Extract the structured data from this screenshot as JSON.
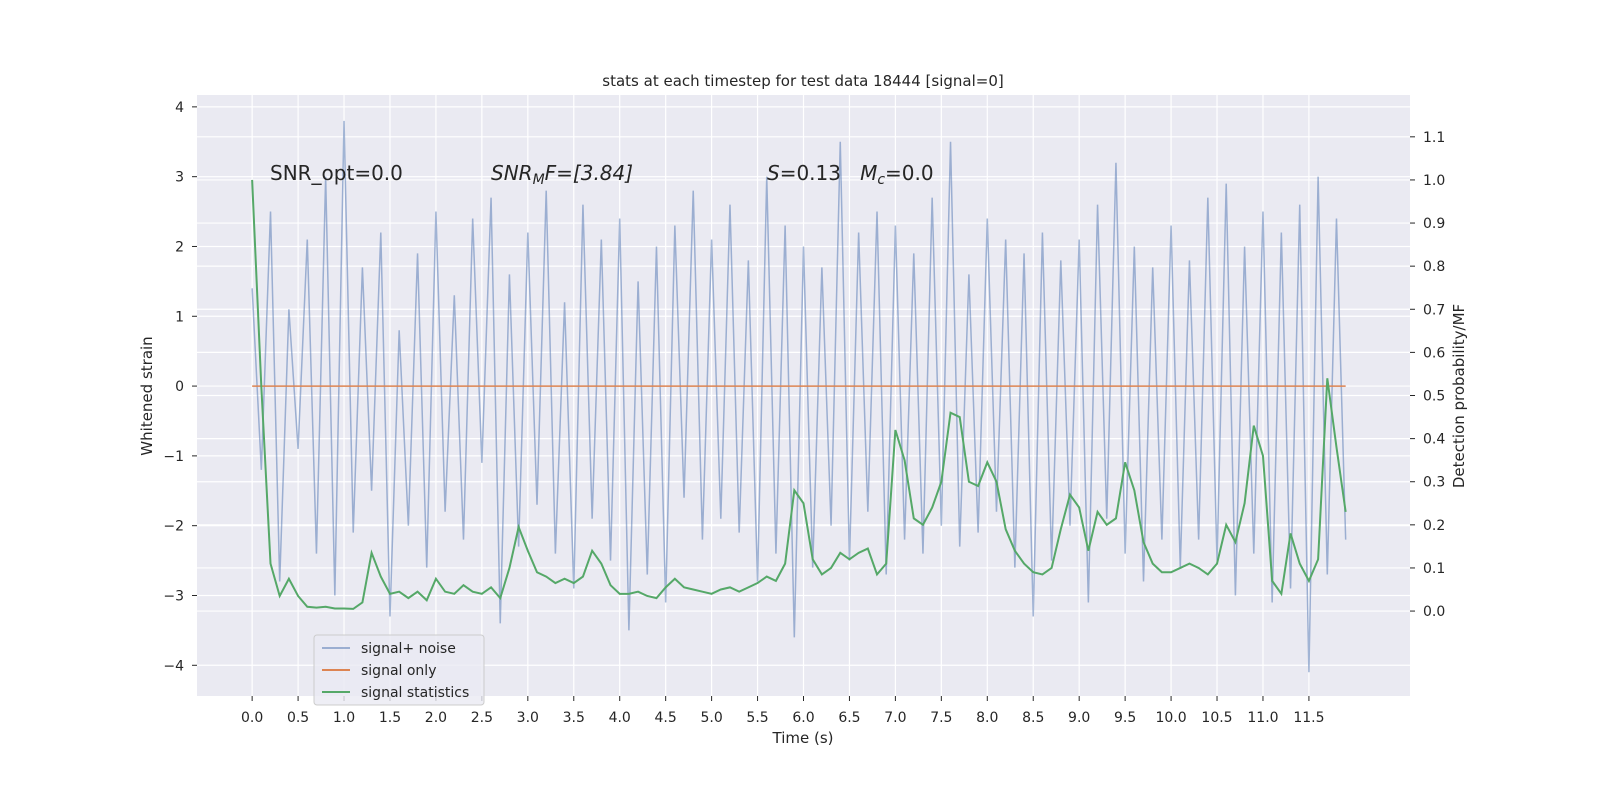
{
  "chart_data": {
    "type": "line",
    "title": "stats at each timestep for test data 18444 [signal=0]",
    "xlabel": "Time (s)",
    "ylabel": "Whitened strain",
    "y2label": "Detection probability/MF",
    "annotations": [
      [
        {
          "text": "SNR_opt=0.0",
          "style": "normal"
        }
      ],
      [
        {
          "text": "SNR",
          "style": "italic"
        },
        {
          "text": "M",
          "style": "sub"
        },
        {
          "text": "F=[3.84]",
          "style": "italic"
        }
      ],
      [
        {
          "text": "S",
          "style": "italic"
        },
        {
          "text": "=0.13   ",
          "style": "normal"
        },
        {
          "text": "M",
          "style": "italic"
        },
        {
          "text": "c",
          "style": "sub"
        },
        {
          "text": "=0.0",
          "style": "normal"
        }
      ]
    ],
    "xlim": [
      -0.6,
      12.6
    ],
    "ylim": [
      -4.44,
      4.17
    ],
    "y2lim": [
      -0.197,
      1.197
    ],
    "xticks": [
      {
        "value": 0,
        "label": "0.0"
      },
      {
        "value": 0.5,
        "label": "0.5"
      },
      {
        "value": 1,
        "label": "1.0"
      },
      {
        "value": 1.5,
        "label": "1.5"
      },
      {
        "value": 2,
        "label": "2.0"
      },
      {
        "value": 2.5,
        "label": "2.5"
      },
      {
        "value": 3,
        "label": "3.0"
      },
      {
        "value": 3.5,
        "label": "3.5"
      },
      {
        "value": 4,
        "label": "4.0"
      },
      {
        "value": 4.5,
        "label": "4.5"
      },
      {
        "value": 5,
        "label": "5.0"
      },
      {
        "value": 5.5,
        "label": "5.5"
      },
      {
        "value": 6,
        "label": "6.0"
      },
      {
        "value": 6.5,
        "label": "6.5"
      },
      {
        "value": 7,
        "label": "7.0"
      },
      {
        "value": 7.5,
        "label": "7.5"
      },
      {
        "value": 8,
        "label": "8.0"
      },
      {
        "value": 8.5,
        "label": "8.5"
      },
      {
        "value": 9,
        "label": "9.0"
      },
      {
        "value": 9.5,
        "label": "9.5"
      },
      {
        "value": 10,
        "label": "10.0"
      },
      {
        "value": 10.5,
        "label": "10.5"
      },
      {
        "value": 11,
        "label": "11.0"
      },
      {
        "value": 11.5,
        "label": "11.5"
      }
    ],
    "yticks": [
      {
        "value": -4,
        "label": "−4"
      },
      {
        "value": -3,
        "label": "−3"
      },
      {
        "value": -2,
        "label": "−2"
      },
      {
        "value": -1,
        "label": "−1"
      },
      0,
      1,
      2,
      3,
      4
    ],
    "y2ticks": [
      {
        "value": 0,
        "label": "0.0"
      },
      {
        "value": 0.1,
        "label": "0.1"
      },
      {
        "value": 0.2,
        "label": "0.2"
      },
      {
        "value": 0.3,
        "label": "0.3"
      },
      {
        "value": 0.4,
        "label": "0.4"
      },
      {
        "value": 0.5,
        "label": "0.5"
      },
      {
        "value": 0.6,
        "label": "0.6"
      },
      {
        "value": 0.7,
        "label": "0.7"
      },
      {
        "value": 0.8,
        "label": "0.8"
      },
      {
        "value": 0.9,
        "label": "0.9"
      },
      {
        "value": 1.0,
        "label": "1.0"
      },
      {
        "value": 1.1,
        "label": "1.1"
      }
    ],
    "grid": true,
    "legend": "lower left",
    "x": [
      0,
      0.1,
      0.2,
      0.3,
      0.4,
      0.5,
      0.6,
      0.7,
      0.8,
      0.9,
      1,
      1.1,
      1.2,
      1.3,
      1.4,
      1.5,
      1.6,
      1.7,
      1.8,
      1.9,
      2,
      2.1,
      2.2,
      2.3,
      2.4,
      2.5,
      2.6,
      2.7,
      2.8,
      2.9,
      3,
      3.1,
      3.2,
      3.3,
      3.4,
      3.5,
      3.6,
      3.7,
      3.8,
      3.9,
      4,
      4.1,
      4.2,
      4.3,
      4.4,
      4.5,
      4.6,
      4.7,
      4.8,
      4.9,
      5,
      5.1,
      5.2,
      5.3,
      5.4,
      5.5,
      5.6,
      5.7,
      5.8,
      5.9,
      6,
      6.1,
      6.2,
      6.3,
      6.4,
      6.5,
      6.6,
      6.7,
      6.8,
      6.9,
      7,
      7.1,
      7.2,
      7.3,
      7.4,
      7.5,
      7.6,
      7.7,
      7.8,
      7.9,
      8,
      8.1,
      8.2,
      8.3,
      8.4,
      8.5,
      8.6,
      8.7,
      8.8,
      8.9,
      9,
      9.1,
      9.2,
      9.3,
      9.4,
      9.5,
      9.6,
      9.7,
      9.8,
      9.9,
      10,
      10.1,
      10.2,
      10.3,
      10.4,
      10.5,
      10.6,
      10.7,
      10.8,
      10.9,
      11,
      11.1,
      11.2,
      11.3,
      11.4,
      11.5,
      11.6,
      11.7,
      11.8,
      11.9
    ],
    "series": [
      {
        "name": "signal+ noise",
        "color": "#4c72b0",
        "opacity": 0.5,
        "axis": "y",
        "values": [
          1.4,
          -1.2,
          2.5,
          -2.8,
          1.1,
          -0.9,
          2.1,
          -2.4,
          3.0,
          -3.0,
          3.8,
          -2.1,
          1.7,
          -1.5,
          2.2,
          -3.3,
          0.8,
          -2.0,
          1.9,
          -2.6,
          2.5,
          -1.8,
          1.3,
          -2.2,
          2.4,
          -1.1,
          2.7,
          -3.4,
          1.6,
          -2.3,
          2.2,
          -1.7,
          2.8,
          -2.4,
          1.2,
          -2.9,
          2.6,
          -1.9,
          2.1,
          -2.5,
          2.4,
          -3.5,
          1.5,
          -2.7,
          2.0,
          -3.1,
          2.3,
          -1.6,
          2.8,
          -2.2,
          2.1,
          -1.9,
          2.6,
          -2.1,
          1.8,
          -2.8,
          3.0,
          -2.4,
          2.3,
          -3.6,
          2.0,
          -2.6,
          1.7,
          -2.0,
          3.5,
          -2.5,
          2.2,
          -1.8,
          2.5,
          -2.7,
          2.3,
          -2.2,
          1.9,
          -2.4,
          2.7,
          -2.0,
          3.5,
          -2.3,
          1.6,
          -2.1,
          2.4,
          -1.8,
          2.1,
          -2.6,
          1.9,
          -3.3,
          2.2,
          -2.5,
          1.8,
          -2.0,
          2.1,
          -3.1,
          2.6,
          -1.9,
          3.2,
          -2.4,
          2.0,
          -2.8,
          1.7,
          -2.2,
          2.3,
          -2.6,
          1.8,
          -2.2,
          2.7,
          -2.5,
          2.9,
          -3.0,
          2.0,
          -2.4,
          2.5,
          -3.1,
          2.2,
          -2.9,
          2.6,
          -4.1,
          3.0,
          -2.7,
          2.4,
          -2.2
        ]
      },
      {
        "name": "signal only",
        "color": "#dd8452",
        "opacity": 1,
        "axis": "y",
        "values": [
          0,
          0,
          0,
          0,
          0,
          0,
          0,
          0,
          0,
          0,
          0,
          0,
          0,
          0,
          0,
          0,
          0,
          0,
          0,
          0,
          0,
          0,
          0,
          0,
          0,
          0,
          0,
          0,
          0,
          0,
          0,
          0,
          0,
          0,
          0,
          0,
          0,
          0,
          0,
          0,
          0,
          0,
          0,
          0,
          0,
          0,
          0,
          0,
          0,
          0,
          0,
          0,
          0,
          0,
          0,
          0,
          0,
          0,
          0,
          0,
          0,
          0,
          0,
          0,
          0,
          0,
          0,
          0,
          0,
          0,
          0,
          0,
          0,
          0,
          0,
          0,
          0,
          0,
          0,
          0,
          0,
          0,
          0,
          0,
          0,
          0,
          0,
          0,
          0,
          0,
          0,
          0,
          0,
          0,
          0,
          0,
          0,
          0,
          0,
          0,
          0,
          0,
          0,
          0,
          0,
          0,
          0,
          0,
          0,
          0,
          0,
          0,
          0,
          0,
          0,
          0,
          0,
          0,
          0,
          0
        ]
      },
      {
        "name": "signal statistics",
        "color": "#55a868",
        "opacity": 1,
        "axis": "y2",
        "values": [
          1.0,
          0.52,
          0.11,
          0.035,
          0.075,
          0.035,
          0.01,
          0.008,
          0.01,
          0.006,
          0.006,
          0.005,
          0.02,
          0.135,
          0.08,
          0.04,
          0.045,
          0.03,
          0.045,
          0.025,
          0.075,
          0.045,
          0.04,
          0.06,
          0.045,
          0.04,
          0.055,
          0.03,
          0.1,
          0.195,
          0.14,
          0.09,
          0.08,
          0.065,
          0.075,
          0.065,
          0.08,
          0.14,
          0.11,
          0.06,
          0.04,
          0.04,
          0.045,
          0.035,
          0.03,
          0.055,
          0.075,
          0.055,
          0.05,
          0.045,
          0.04,
          0.05,
          0.055,
          0.045,
          0.055,
          0.065,
          0.08,
          0.07,
          0.11,
          0.28,
          0.25,
          0.12,
          0.085,
          0.1,
          0.135,
          0.12,
          0.135,
          0.145,
          0.085,
          0.11,
          0.42,
          0.35,
          0.215,
          0.2,
          0.24,
          0.3,
          0.46,
          0.45,
          0.3,
          0.29,
          0.345,
          0.3,
          0.19,
          0.14,
          0.11,
          0.09,
          0.085,
          0.1,
          0.19,
          0.27,
          0.24,
          0.14,
          0.23,
          0.2,
          0.215,
          0.345,
          0.28,
          0.16,
          0.11,
          0.09,
          0.09,
          0.1,
          0.11,
          0.1,
          0.085,
          0.11,
          0.2,
          0.16,
          0.25,
          0.43,
          0.36,
          0.07,
          0.04,
          0.18,
          0.11,
          0.07,
          0.12,
          0.54,
          0.38,
          0.23
        ]
      }
    ]
  }
}
